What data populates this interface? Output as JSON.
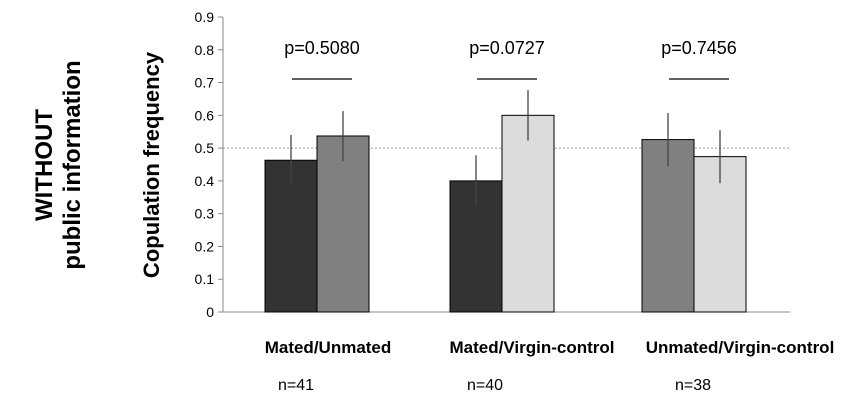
{
  "side_label": {
    "line1": "WITHOUT",
    "line2": "public information"
  },
  "chart_data": {
    "type": "bar",
    "ylabel": "Copulation frequency",
    "xlabel": "",
    "ylim": [
      0,
      0.9
    ],
    "yticks": [
      "0",
      "0.1",
      "0.2",
      "0.3",
      "0.4",
      "0.5",
      "0.6",
      "0.7",
      "0.8",
      "0.9"
    ],
    "reference_line": 0.5,
    "colors": {
      "mated": "#333333",
      "unmated": "#808080",
      "virgin": "#dcdcdc"
    },
    "groups": [
      {
        "label": "Mated/Unmated",
        "n": "n=41",
        "p": "p=0.5080",
        "bars": [
          {
            "kind": "mated",
            "value": 0.463,
            "err_low": 0.385,
            "err_high": 0.54
          },
          {
            "kind": "unmated",
            "value": 0.537,
            "err_low": 0.46,
            "err_high": 0.613
          }
        ]
      },
      {
        "label": "Mated/Virgin-control",
        "n": "n=40",
        "p": "p=0.0727",
        "bars": [
          {
            "kind": "mated",
            "value": 0.4,
            "err_low": 0.323,
            "err_high": 0.478
          },
          {
            "kind": "virgin",
            "value": 0.6,
            "err_low": 0.523,
            "err_high": 0.677
          }
        ]
      },
      {
        "label": "Unmated/Virgin-control",
        "n": "n=38",
        "p": "p=0.7456",
        "bars": [
          {
            "kind": "unmated",
            "value": 0.526,
            "err_low": 0.445,
            "err_high": 0.607
          },
          {
            "kind": "virgin",
            "value": 0.474,
            "err_low": 0.393,
            "err_high": 0.555
          }
        ]
      }
    ]
  }
}
